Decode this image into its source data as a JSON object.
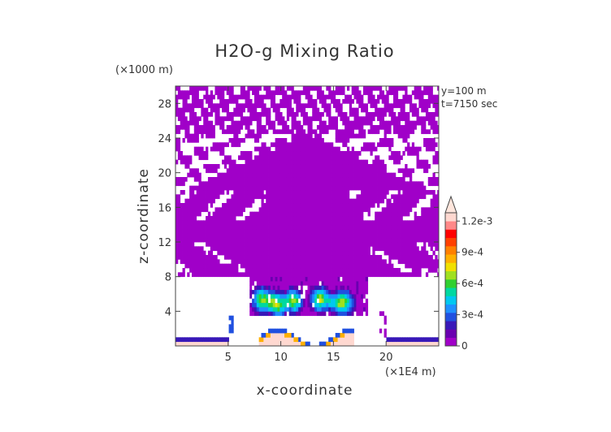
{
  "chart_data": {
    "type": "heatmap",
    "title": "H2O-g Mixing Ratio",
    "xlabel": "x-coordinate",
    "ylabel": "z-coordinate",
    "x_unit": "(×1E4 m)",
    "y_unit": "(×1000 m)",
    "info": [
      "y=100 m",
      "t=7150 sec"
    ],
    "xlim": [
      0,
      25
    ],
    "ylim": [
      0,
      30
    ],
    "xticks": [
      5,
      10,
      15,
      20
    ],
    "yticks": [
      4,
      8,
      12,
      16,
      20,
      24,
      28
    ],
    "colorbar": {
      "labels": [
        "1.2e-3",
        "9e-4",
        "6e-4",
        "3e-4",
        "0"
      ],
      "label_values": [
        0.0012,
        0.0009,
        0.0006,
        0.0003,
        0
      ],
      "colors": [
        "#a000c8",
        "#6a00b0",
        "#3818b8",
        "#2050e0",
        "#1e90ff",
        "#00c8f0",
        "#00d8a0",
        "#30d030",
        "#a0e020",
        "#f0e000",
        "#ffb000",
        "#ff8000",
        "#ff4000",
        "#ff0000",
        "#ff8888",
        "#ffd8d0"
      ],
      "extend": "max"
    },
    "grid": false
  }
}
